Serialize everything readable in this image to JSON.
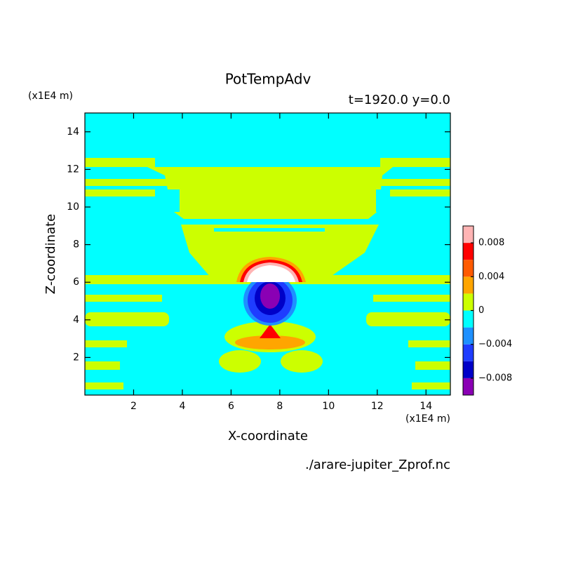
{
  "chart_data": {
    "type": "contour",
    "title": "PotTempAdv",
    "subtitle": "t=1920.0 y=0.0",
    "x_label": "X-coordinate",
    "y_label": "Z-coordinate",
    "x_unit": "(x1E4 m)",
    "y_unit": "(x1E4 m)",
    "source": "./arare-jupiter_Zprof.nc",
    "xlim": [
      0,
      15
    ],
    "xticks": [
      2,
      4,
      6,
      8,
      10,
      12,
      14
    ],
    "ylim": [
      0,
      15
    ],
    "yticks": [
      2,
      4,
      6,
      8,
      10,
      12,
      14
    ],
    "colorbar": {
      "levels": [
        -0.01,
        -0.008,
        -0.006,
        -0.004,
        -0.002,
        0,
        0.002,
        0.004,
        0.006,
        0.008,
        0.01
      ],
      "colors": [
        "#8a00b4",
        "#0000c8",
        "#1e3cff",
        "#1e90ff",
        "#00ffff",
        "#ccff00",
        "#ffa500",
        "#ff5a00",
        "#ff0000",
        "#ffb4b4"
      ],
      "ticks": [
        {
          "value": -0.008,
          "label": "−0.008"
        },
        {
          "value": -0.004,
          "label": "−0.004"
        },
        0,
        0.004,
        0.008
      ]
    }
  }
}
